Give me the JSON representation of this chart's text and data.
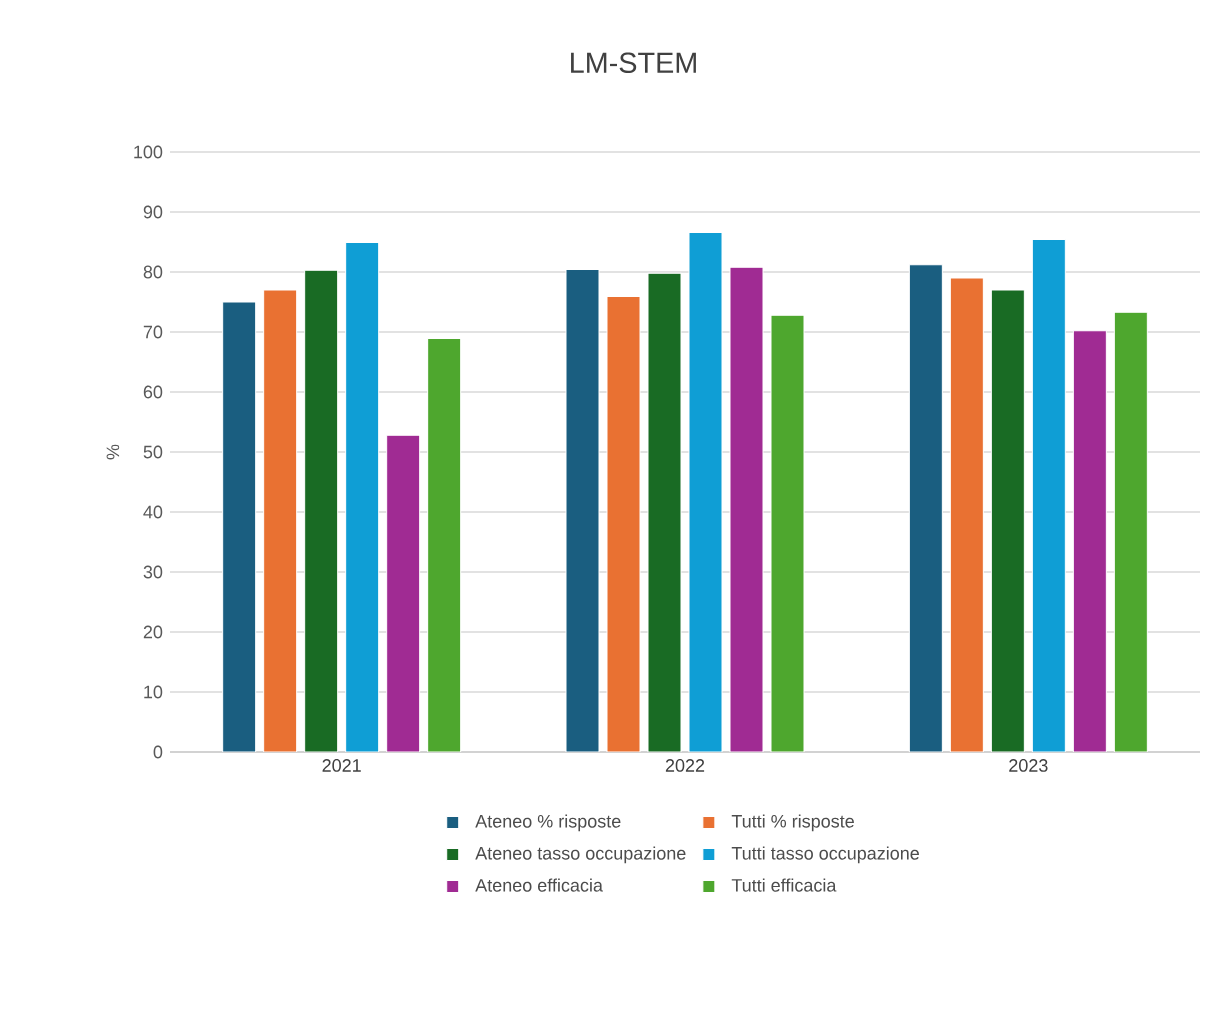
{
  "chart_data": {
    "type": "bar",
    "title": "LM-STEM",
    "ylabel": "%",
    "categories": [
      "2021",
      "2022",
      "2023"
    ],
    "series": [
      {
        "name": "Ateneo % risposte",
        "color": "#1a5e80",
        "values": [
          75,
          80.4,
          81.2
        ]
      },
      {
        "name": "Tutti % risposte",
        "color": "#e97132",
        "values": [
          77,
          75.9,
          79
        ]
      },
      {
        "name": "Ateneo tasso occupazione",
        "color": "#196b24",
        "values": [
          80.3,
          79.8,
          77
        ]
      },
      {
        "name": "Tutti tasso occupazione",
        "color": "#0f9ed5",
        "values": [
          84.9,
          86.6,
          85.4
        ]
      },
      {
        "name": "Ateneo efficacia",
        "color": "#a02b93",
        "values": [
          52.8,
          80.8,
          70.2
        ]
      },
      {
        "name": "Tutti efficacia",
        "color": "#4ea72e",
        "values": [
          68.9,
          72.8,
          73.3
        ]
      }
    ],
    "ylim": [
      0,
      100
    ],
    "yticks": [
      0,
      10,
      20,
      30,
      40,
      50,
      60,
      70,
      80,
      90,
      100
    ],
    "grid": "y",
    "legend": "bottom"
  }
}
